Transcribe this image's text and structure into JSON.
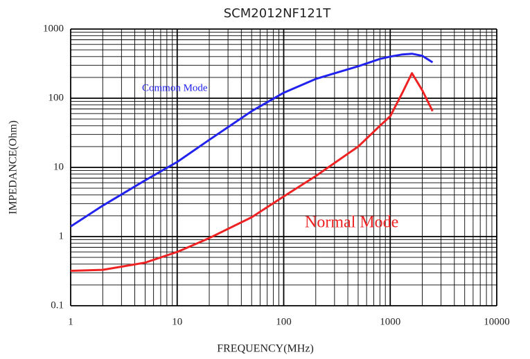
{
  "chart_data": {
    "type": "line",
    "title": "SCM2012NF121T",
    "xlabel": "FREQUENCY(MHz)",
    "ylabel": "IMPEDANCE(Ohm)",
    "x": [
      1,
      2,
      5,
      10,
      20,
      50,
      100,
      200,
      500,
      800,
      1000,
      1300,
      1600,
      2000,
      2500
    ],
    "series": [
      {
        "name": "Common Mode",
        "color": "#2222ee",
        "values": [
          1.4,
          2.8,
          6.5,
          12,
          25,
          65,
          120,
          190,
          290,
          370,
          400,
          430,
          440,
          410,
          330
        ]
      },
      {
        "name": "Normal Mode",
        "color": "#ee2222",
        "values": [
          0.32,
          0.33,
          0.42,
          0.6,
          0.95,
          1.9,
          3.8,
          7.5,
          20,
          40,
          55,
          120,
          230,
          130,
          65
        ]
      }
    ],
    "xlim": [
      1,
      10000
    ],
    "ylim": [
      0.1,
      1000
    ],
    "xticks": [
      1,
      10,
      100,
      1000,
      10000
    ],
    "yticks": [
      0.1,
      1,
      10,
      100,
      1000
    ],
    "xscale": "log",
    "yscale": "log",
    "grid": true
  }
}
